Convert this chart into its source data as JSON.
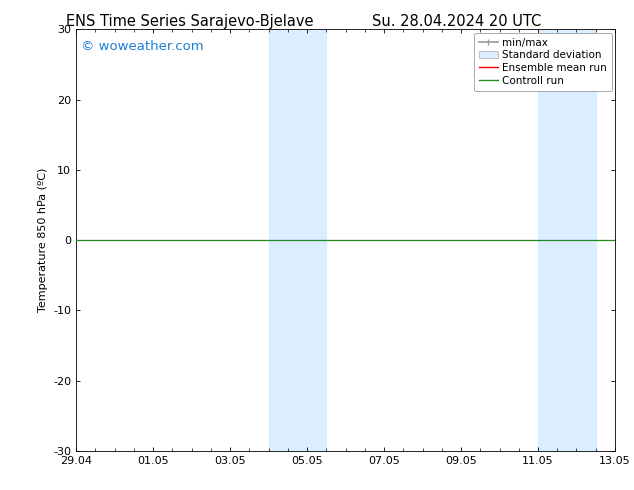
{
  "title_left": "ENS Time Series Sarajevo-Bjelave",
  "title_right": "Su. 28.04.2024 20 UTC",
  "ylabel": "Temperature 850 hPa (ºC)",
  "ylim": [
    -30,
    30
  ],
  "yticks": [
    -30,
    -20,
    -10,
    0,
    10,
    20,
    30
  ],
  "xtick_labels": [
    "29.04",
    "01.05",
    "03.05",
    "05.05",
    "07.05",
    "09.05",
    "11.05",
    "13.05"
  ],
  "xtick_positions": [
    0,
    2,
    4,
    6,
    8,
    10,
    12,
    14
  ],
  "watermark": "© woweather.com",
  "watermark_color": "#1a7fd4",
  "background_color": "#ffffff",
  "plot_bg_color": "#ffffff",
  "shaded_bands": [
    {
      "x_start": 5.0,
      "x_end": 6.5,
      "color": "#daeeff",
      "alpha": 1.0
    },
    {
      "x_start": 12.0,
      "x_end": 13.5,
      "color": "#daeeff",
      "alpha": 1.0
    }
  ],
  "zero_line_color": "#000000",
  "control_run_y": 0.0,
  "control_run_color": "#228B22",
  "ensemble_mean_color": "#ff0000",
  "legend_items": [
    {
      "label": "min/max",
      "color": "#999999"
    },
    {
      "label": "Standard deviation",
      "color": "#daeeff"
    },
    {
      "label": "Ensemble mean run",
      "color": "#ff0000"
    },
    {
      "label": "Controll run",
      "color": "#228B22"
    }
  ],
  "title_fontsize": 10.5,
  "tick_fontsize": 8,
  "legend_fontsize": 7.5,
  "watermark_fontsize": 9.5,
  "ylabel_fontsize": 8
}
